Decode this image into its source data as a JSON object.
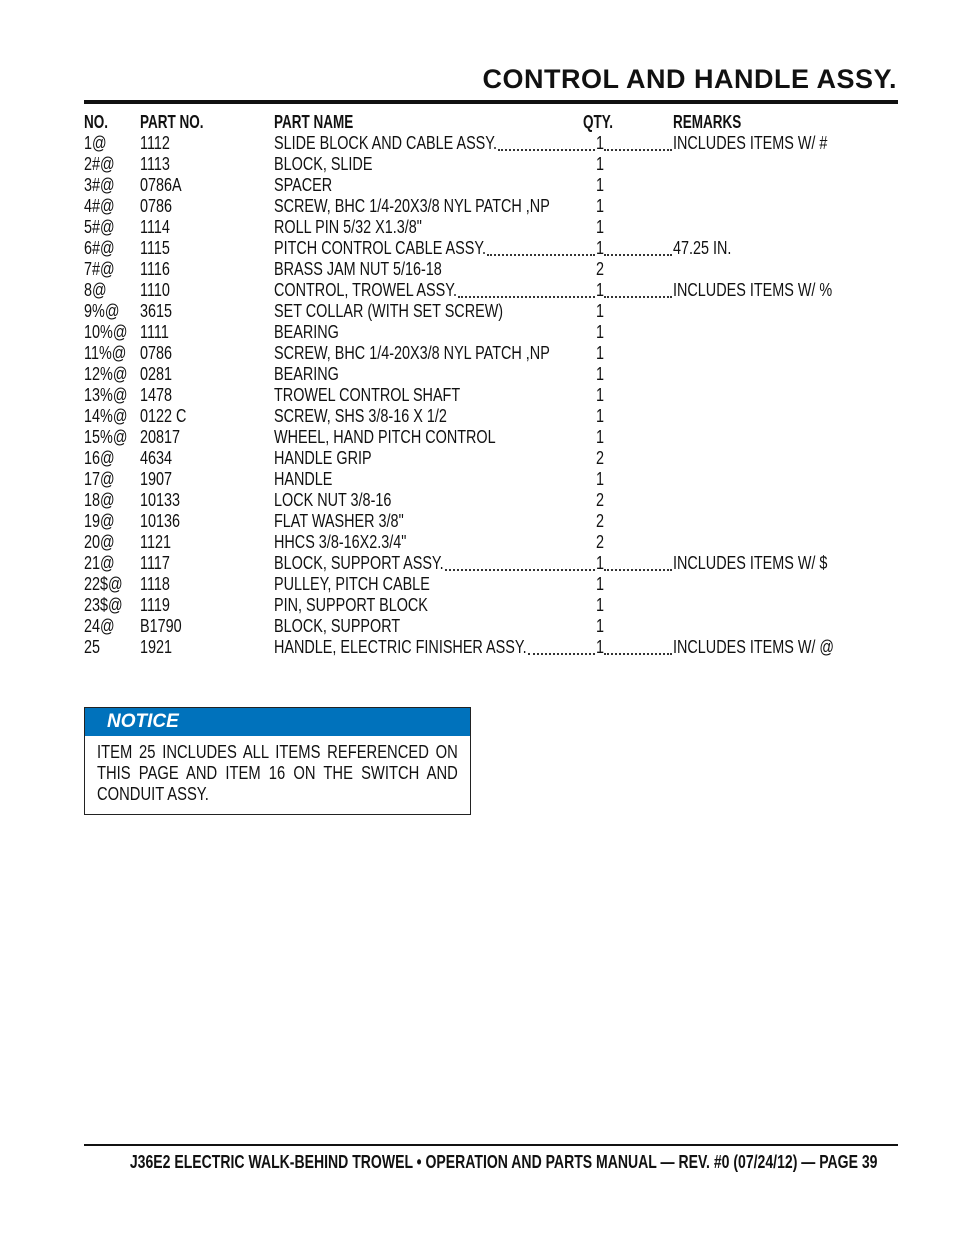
{
  "title": "CONTROL AND HANDLE ASSY.",
  "table": {
    "headers": {
      "no": "NO.",
      "part_no": "PART NO.",
      "part_name": "PART NAME",
      "qty": "QTY.",
      "remarks": "REMARKS"
    },
    "rows": [
      {
        "no": "1@",
        "part_no": "1112",
        "part_name": "SLIDE BLOCK AND CABLE ASSY.",
        "qty": "1",
        "remarks": "INCLUDES ITEMS W/ #"
      },
      {
        "no": "2#@",
        "part_no": "1113",
        "part_name": "BLOCK, SLIDE",
        "qty": "1",
        "remarks": ""
      },
      {
        "no": "3#@",
        "part_no": "0786A",
        "part_name": "SPACER",
        "qty": "1",
        "remarks": ""
      },
      {
        "no": "4#@",
        "part_no": "0786",
        "part_name": "SCREW, BHC 1/4-20X3/8 NYL PATCH ,NP",
        "qty": "1",
        "remarks": ""
      },
      {
        "no": "5#@",
        "part_no": "1114",
        "part_name": "ROLL PIN 5/32 X1.3/8\"",
        "qty": "1",
        "remarks": ""
      },
      {
        "no": "6#@",
        "part_no": "1115",
        "part_name": "PITCH CONTROL CABLE ASSY.",
        "qty": "1",
        "remarks": "47.25 IN."
      },
      {
        "no": "7#@",
        "part_no": "1116",
        "part_name": "BRASS JAM NUT 5/16-18",
        "qty": "2",
        "remarks": ""
      },
      {
        "no": "8@",
        "part_no": "1110",
        "part_name": "CONTROL, TROWEL ASSY.",
        "qty": "1",
        "remarks": "INCLUDES ITEMS W/ %"
      },
      {
        "no": "9%@",
        "part_no": "3615",
        "part_name": "SET COLLAR (WITH SET SCREW)",
        "qty": "1",
        "remarks": ""
      },
      {
        "no": "10%@",
        "part_no": "1111",
        "part_name": "BEARING",
        "qty": "1",
        "remarks": ""
      },
      {
        "no": "11%@",
        "part_no": "0786",
        "part_name": "SCREW, BHC 1/4-20X3/8 NYL PATCH ,NP",
        "qty": "1",
        "remarks": ""
      },
      {
        "no": "12%@",
        "part_no": "0281",
        "part_name": "BEARING",
        "qty": "1",
        "remarks": ""
      },
      {
        "no": "13%@",
        "part_no": "1478",
        "part_name": "TROWEL CONTROL SHAFT",
        "qty": "1",
        "remarks": ""
      },
      {
        "no": "14%@",
        "part_no": "0122 C",
        "part_name": "SCREW, SHS 3/8-16 X 1/2",
        "qty": "1",
        "remarks": ""
      },
      {
        "no": "15%@",
        "part_no": "20817",
        "part_name": "WHEEL, HAND PITCH CONTROL",
        "qty": "1",
        "remarks": ""
      },
      {
        "no": "16@",
        "part_no": "4634",
        "part_name": "HANDLE GRIP",
        "qty": "2",
        "remarks": ""
      },
      {
        "no": "17@",
        "part_no": "1907",
        "part_name": "HANDLE",
        "qty": "1",
        "remarks": ""
      },
      {
        "no": "18@",
        "part_no": "10133",
        "part_name": "LOCK NUT 3/8-16",
        "qty": "2",
        "remarks": ""
      },
      {
        "no": "19@",
        "part_no": "10136",
        "part_name": "FLAT WASHER 3/8\"",
        "qty": "2",
        "remarks": ""
      },
      {
        "no": "20@",
        "part_no": "1121",
        "part_name": "HHCS 3/8-16X2.3/4\"",
        "qty": "2",
        "remarks": ""
      },
      {
        "no": "21@",
        "part_no": "1117",
        "part_name": "BLOCK, SUPPORT ASSY.",
        "qty": "1",
        "remarks": "INCLUDES ITEMS W/ $"
      },
      {
        "no": "22$@",
        "part_no": "1118",
        "part_name": "PULLEY, PITCH CABLE",
        "qty": "1",
        "remarks": ""
      },
      {
        "no": "23$@",
        "part_no": "1119",
        "part_name": "PIN, SUPPORT BLOCK",
        "qty": "1",
        "remarks": ""
      },
      {
        "no": "24@",
        "part_no": "B1790",
        "part_name": "BLOCK, SUPPORT",
        "qty": "1",
        "remarks": ""
      },
      {
        "no": "25",
        "part_no": "1921",
        "part_name": "HANDLE, ELECTRIC FINISHER ASSY.",
        "qty": "1",
        "remarks": "INCLUDES ITEMS W/ @"
      }
    ]
  },
  "notice": {
    "heading": "NOTICE",
    "body": "ITEM 25 INCLUDES ALL ITEMS REFERENCED ON THIS PAGE AND ITEM 16 ON THE SWITCH AND CONDUIT ASSY.",
    "heading_color": "#0072bc"
  },
  "footer": "J36E2 ELECTRIC WALK-BEHIND TROWEL • OPERATION AND PARTS MANUAL — REV. #0 (07/24/12) — PAGE 39"
}
